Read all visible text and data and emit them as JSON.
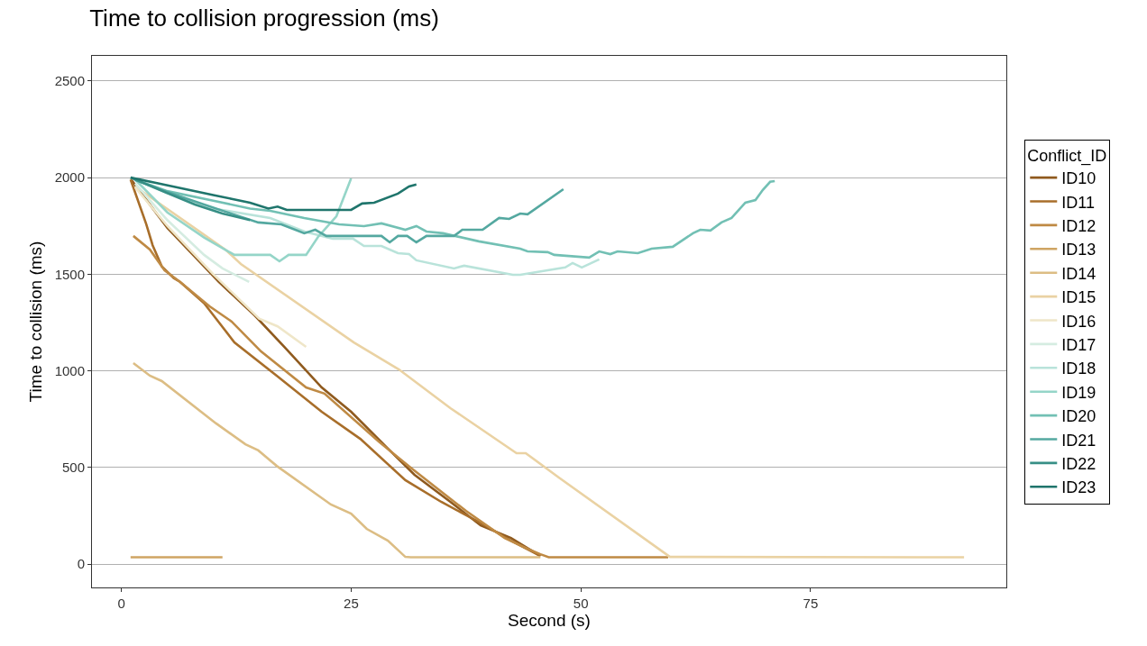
{
  "chart_data": {
    "type": "line",
    "title": "Time to collision progression (ms)",
    "xlabel": "Second (s)",
    "ylabel": "Time to collision (ms)",
    "legend_title": "Conflict_ID",
    "xlim": [
      -3.2,
      96.3
    ],
    "ylim": [
      -121,
      2630
    ],
    "xticks": [
      0,
      25,
      50,
      75
    ],
    "yticks": [
      0,
      500,
      1000,
      1500,
      2000,
      2500
    ],
    "grid": "y",
    "legend": "right",
    "line_style": "solid",
    "marker": "none",
    "series": [
      {
        "name": "ID10",
        "color": "#8f5a1e",
        "x": [
          1.1,
          5,
          10.6,
          14.5,
          17.9,
          21.8,
          25,
          29.2,
          31.9,
          35.8,
          39.1,
          42.4,
          45.6
        ],
        "values": [
          1987,
          1740,
          1460,
          1287,
          1115,
          914,
          788,
          588,
          462,
          322,
          200,
          135,
          42
        ]
      },
      {
        "name": "ID11",
        "color": "#a86e2a",
        "x": [
          1,
          2.7,
          3.4,
          4.4,
          5.7,
          6.4,
          9,
          12.3,
          16.9,
          21.8,
          26,
          30.9,
          34.8,
          39,
          42.4,
          45.6
        ],
        "values": [
          1990,
          1760,
          1650,
          1540,
          1480,
          1460,
          1350,
          1147,
          975,
          788,
          648,
          434,
          322,
          215,
          121,
          42
        ]
      },
      {
        "name": "ID12",
        "color": "#bf8a44",
        "x": [
          1.3,
          3.1,
          4.7,
          6.4,
          9.6,
          12,
          15.2,
          20.1,
          22.1,
          28,
          31.6,
          37.5,
          41.7,
          44.4,
          45.6,
          46.5,
          59.5
        ],
        "values": [
          1698,
          1628,
          1520,
          1460,
          1334,
          1255,
          1100,
          914,
          882,
          634,
          494,
          275,
          135,
          75,
          51,
          35,
          35
        ]
      },
      {
        "name": "ID13",
        "color": "#cfa463",
        "x": [
          1,
          11
        ],
        "values": [
          35,
          35
        ]
      },
      {
        "name": "ID14",
        "color": "#dcbd84",
        "x": [
          1.3,
          3.1,
          4.4,
          10.3,
          13.5,
          14.9,
          16.9,
          22.8,
          25,
          26.7,
          29,
          30.9,
          31.5,
          45.6
        ],
        "values": [
          1040,
          975,
          947,
          728,
          620,
          588,
          508,
          308,
          261,
          182,
          121,
          37,
          35,
          35
        ]
      },
      {
        "name": "ID15",
        "color": "#ead2a3",
        "x": [
          1.5,
          11.3,
          13,
          25.3,
          30.2,
          35.8,
          43,
          44,
          47.6,
          59.7,
          91.7
        ],
        "values": [
          1954,
          1628,
          1553,
          1147,
          1007,
          807,
          574,
          574,
          448,
          37,
          35
        ]
      },
      {
        "name": "ID16",
        "color": "#efe6c8",
        "x": [
          1.5,
          5,
          10,
          15,
          17,
          20.1
        ],
        "values": [
          1950,
          1750,
          1500,
          1270,
          1230,
          1124
        ]
      },
      {
        "name": "ID17",
        "color": "#d5ece1",
        "x": [
          1.5,
          5,
          9,
          11,
          13.9
        ],
        "values": [
          1970,
          1780,
          1600,
          1530,
          1460
        ]
      },
      {
        "name": "ID18",
        "color": "#b9e3da",
        "x": [
          1.5,
          5,
          10,
          16.2,
          20,
          23,
          25.2,
          26.4,
          28.3,
          30.1,
          31.3,
          32.1,
          36.2,
          37.3,
          42.6,
          43.4,
          48.3,
          49.1,
          50.1,
          52
        ],
        "values": [
          1990,
          1920,
          1840,
          1791,
          1720,
          1684,
          1684,
          1646,
          1646,
          1609,
          1604,
          1572,
          1530,
          1544,
          1497,
          1497,
          1535,
          1558,
          1535,
          1577
        ]
      },
      {
        "name": "ID19",
        "color": "#95d5c8",
        "x": [
          1.5,
          5,
          9,
          12.3,
          16.2,
          17.2,
          18.2,
          20.1,
          21.4,
          23.4,
          25
        ],
        "values": [
          1990,
          1820,
          1690,
          1600,
          1600,
          1567,
          1600,
          1600,
          1693,
          1800,
          1996
        ]
      },
      {
        "name": "ID20",
        "color": "#72c0b4",
        "x": [
          1.5,
          5,
          10,
          14,
          16.2,
          19.9,
          23.7,
          26.4,
          28.3,
          30.9,
          32.1,
          33.2,
          35,
          38.9,
          43.4,
          44.2,
          46.4,
          47.1,
          50.9,
          52,
          53.2,
          54,
          56.2,
          57.7,
          60,
          62.2,
          63,
          64.1,
          65.3,
          66.4,
          67.9,
          69,
          69.8,
          70.6,
          71.1
        ],
        "values": [
          1990,
          1930,
          1880,
          1840,
          1828,
          1791,
          1758,
          1749,
          1763,
          1730,
          1749,
          1721,
          1712,
          1670,
          1632,
          1618,
          1614,
          1600,
          1586,
          1618,
          1604,
          1618,
          1609,
          1632,
          1642,
          1712,
          1730,
          1726,
          1768,
          1791,
          1870,
          1884,
          1936,
          1978,
          1982
        ]
      },
      {
        "name": "ID21",
        "color": "#54a8a0",
        "x": [
          1.5,
          6.4,
          11.3,
          14.9,
          17.4,
          19.9,
          21.1,
          22.3,
          28.3,
          29.2,
          30.1,
          31.1,
          32.1,
          33.2,
          36.2,
          37.1,
          39.3,
          41.1,
          42.2,
          43.4,
          44.2,
          48.1
        ],
        "values": [
          1987,
          1903,
          1824,
          1768,
          1758,
          1712,
          1730,
          1698,
          1698,
          1665,
          1698,
          1698,
          1665,
          1698,
          1698,
          1730,
          1730,
          1791,
          1786,
          1814,
          1810,
          1940
        ]
      },
      {
        "name": "ID22",
        "color": "#378f86",
        "x": [
          1,
          4.7,
          8,
          11,
          14
        ],
        "values": [
          2000,
          1926,
          1861,
          1814,
          1780
        ]
      },
      {
        "name": "ID23",
        "color": "#1f756c",
        "x": [
          1,
          4,
          7,
          10,
          12,
          14,
          16,
          17,
          18,
          25,
          26.2,
          27.5,
          30.1,
          31.3,
          32.1
        ],
        "values": [
          2000,
          1970,
          1940,
          1910,
          1890,
          1870,
          1840,
          1850,
          1833,
          1833,
          1866,
          1870,
          1917,
          1954,
          1964
        ]
      }
    ]
  }
}
